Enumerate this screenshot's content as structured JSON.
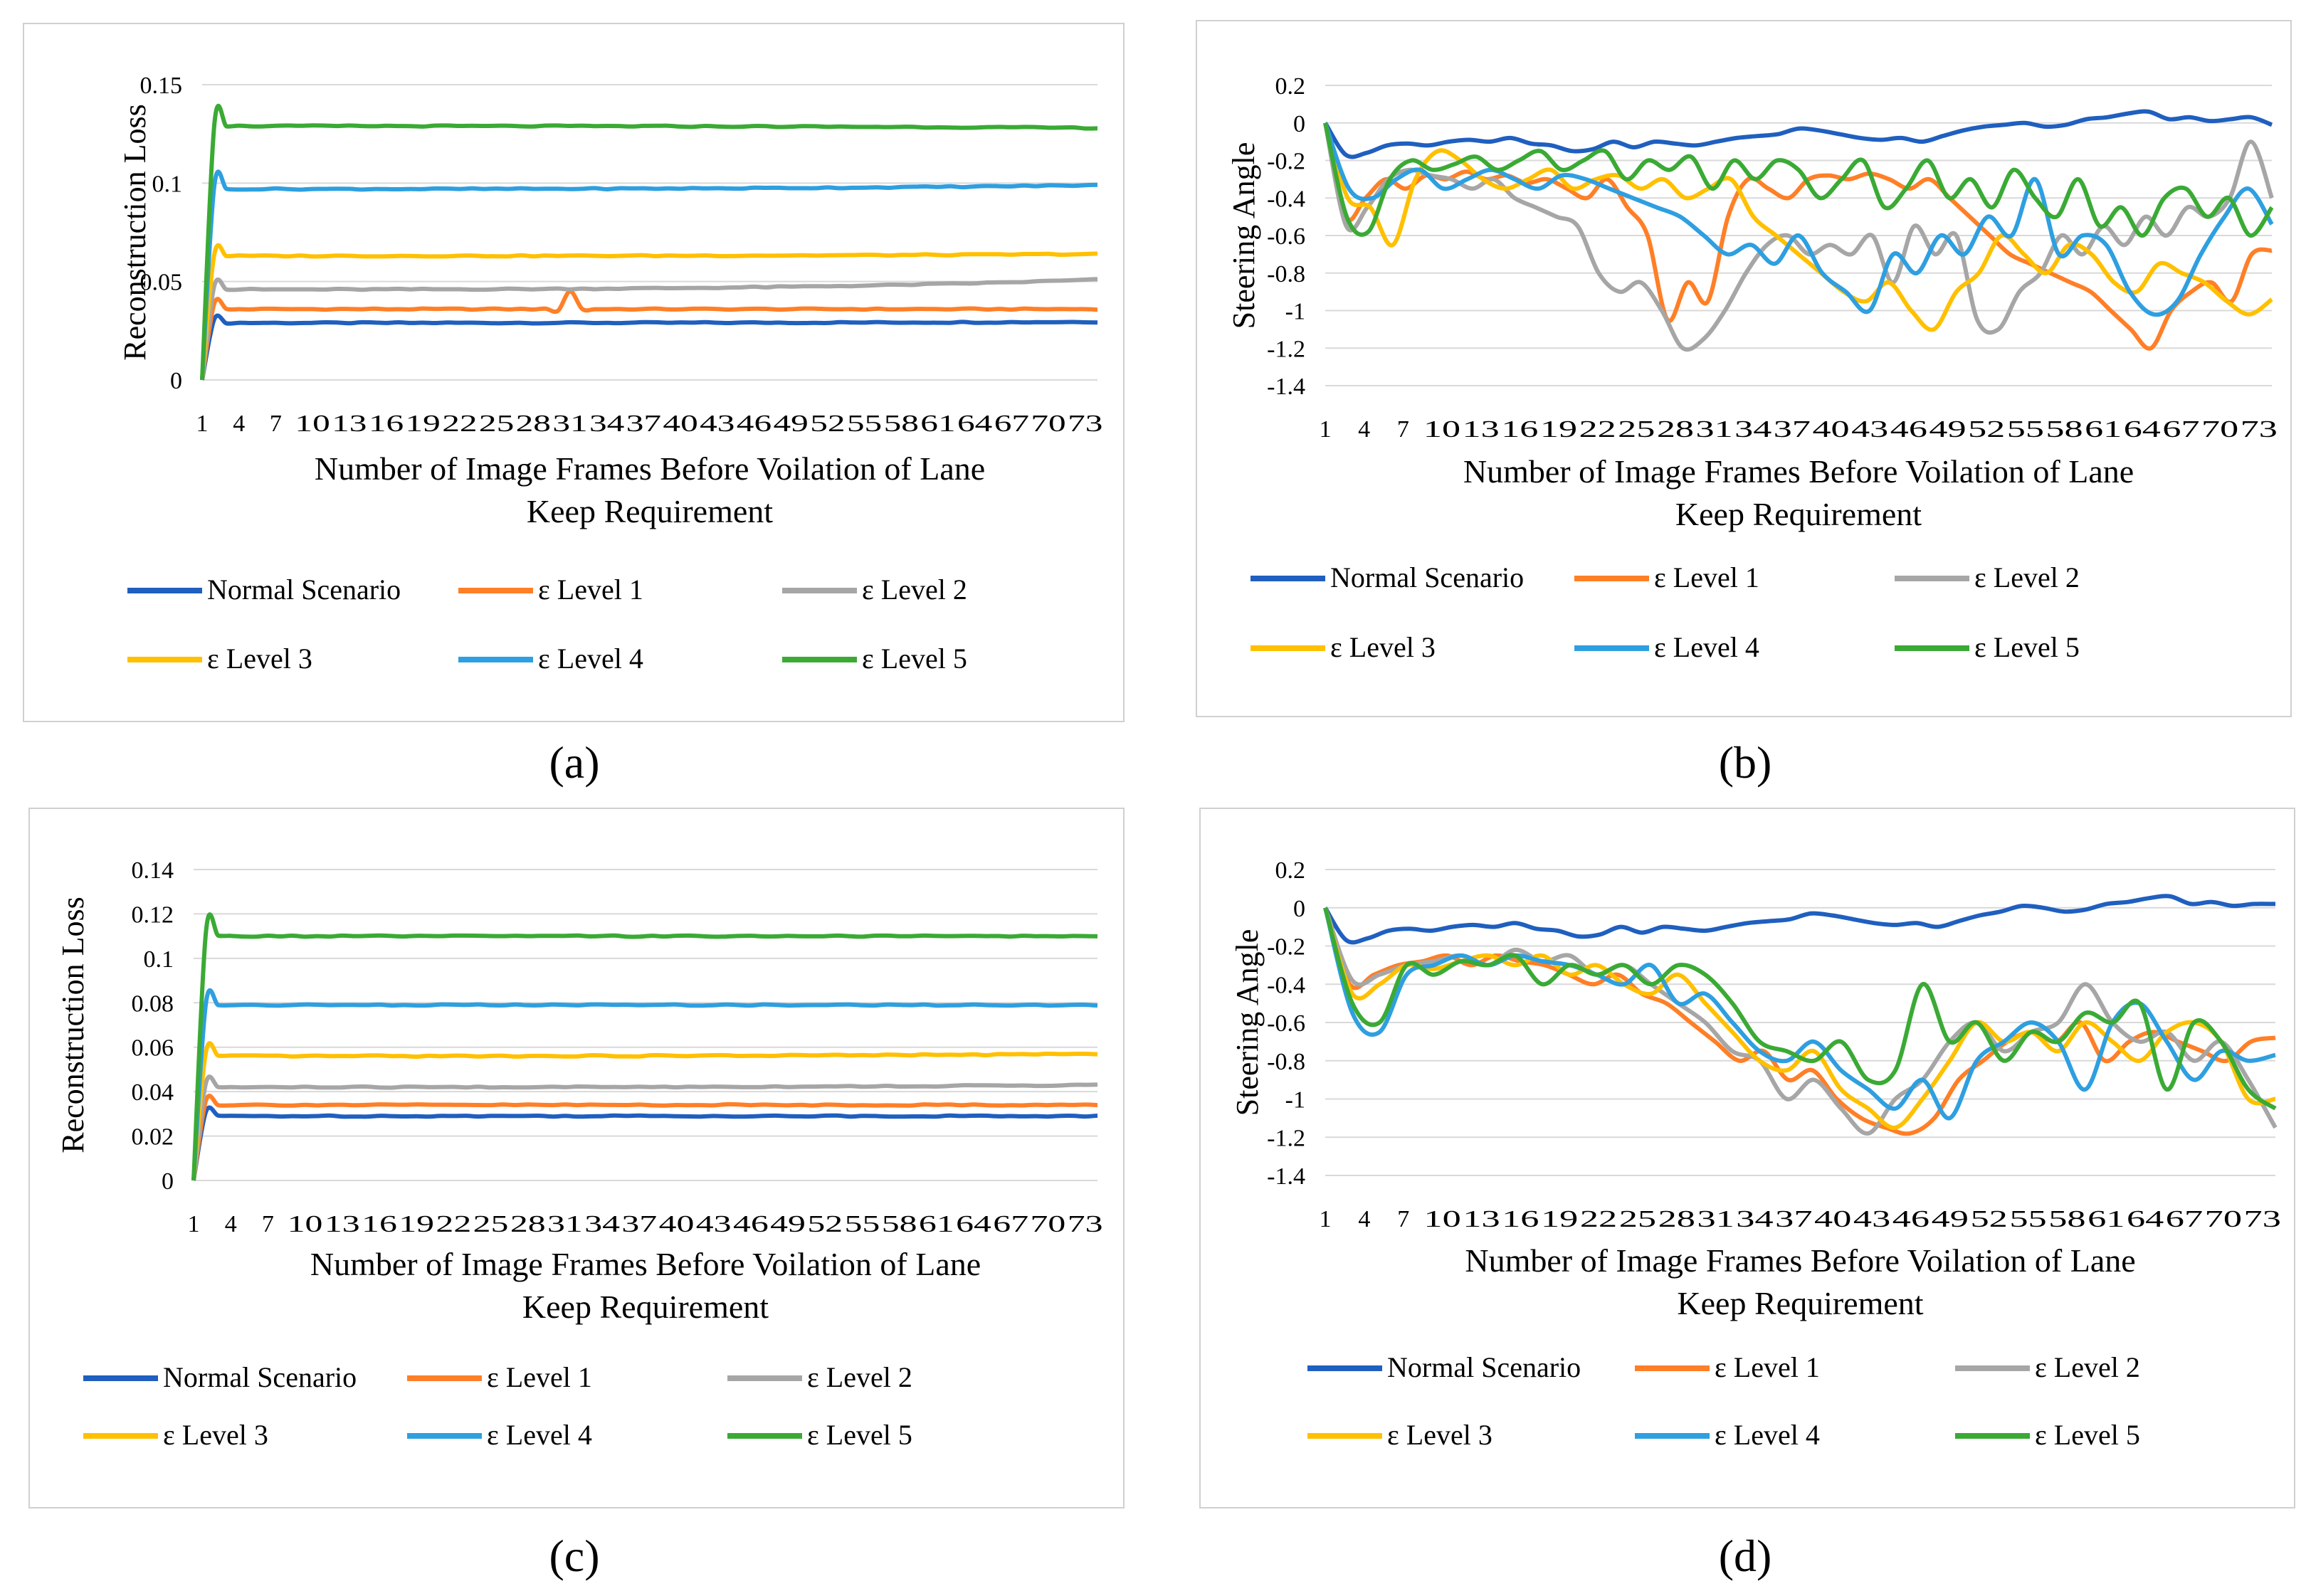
{
  "captions": [
    "(a)",
    "(b)",
    "(c)",
    "(d)"
  ],
  "series_colors": {
    "Normal Scenario": "#1f5fbf",
    "ε Level 1": "#ff7f27",
    "ε Level 2": "#a6a6a6",
    "ε Level 3": "#ffc000",
    "ε Level 4": "#2e9fe0",
    "ε Level 5": "#3aaa35"
  },
  "chart_data": [
    {
      "panel": "a",
      "type": "line",
      "title": "",
      "xlabel": "Number of Image Frames Before Voilation of Lane Keep Requirement",
      "ylabel": "Reconstruction Loss",
      "x_count": 74,
      "x_tick_labels": [
        "1",
        "4",
        "7",
        "10",
        "13",
        "16",
        "19",
        "22",
        "25",
        "28",
        "31",
        "34",
        "37",
        "40",
        "43",
        "46",
        "49",
        "52",
        "55",
        "58",
        "61",
        "64",
        "67",
        "70",
        "73"
      ],
      "y_ticks": [
        "0",
        "0.05",
        "0.1",
        "0.15"
      ],
      "ylim": [
        0,
        0.15
      ],
      "grid": "horizontal",
      "legend": "bottom",
      "series": [
        {
          "name": "Normal Scenario",
          "profile": "flat",
          "base": 0.029,
          "peak": 0.031,
          "end": 0.0295
        },
        {
          "name": "ε Level 1",
          "profile": "flat",
          "base": 0.036,
          "peak": 0.039,
          "end": 0.036,
          "bump_at": 30,
          "bump": 0.045
        },
        {
          "name": "ε Level 2",
          "profile": "flat",
          "base": 0.046,
          "peak": 0.048,
          "end": 0.051
        },
        {
          "name": "ε Level 3",
          "profile": "flat",
          "base": 0.063,
          "peak": 0.064,
          "end": 0.064
        },
        {
          "name": "ε Level 4",
          "profile": "flat",
          "base": 0.097,
          "peak": 0.099,
          "end": 0.099
        },
        {
          "name": "ε Level 5",
          "profile": "flat",
          "base": 0.129,
          "peak": 0.13,
          "end": 0.128
        }
      ]
    },
    {
      "panel": "b",
      "type": "line",
      "title": "",
      "xlabel": "Number of Image Frames Before Voilation of Lane Keep Requirement",
      "ylabel": "Steering Angle",
      "x_count": 74,
      "x_tick_labels": [
        "1",
        "4",
        "7",
        "10",
        "13",
        "16",
        "19",
        "22",
        "25",
        "28",
        "31",
        "34",
        "37",
        "40",
        "43",
        "46",
        "49",
        "52",
        "55",
        "58",
        "61",
        "64",
        "67",
        "70",
        "73"
      ],
      "y_ticks": [
        "0.2",
        "0",
        "-0.2",
        "-0.4",
        "-0.6",
        "-0.8",
        "-1",
        "-1.2",
        "-1.4"
      ],
      "ylim": [
        -1.4,
        0.2
      ],
      "grid": "horizontal",
      "legend": "bottom",
      "series": [
        {
          "name": "Normal Scenario",
          "values": [
            0,
            -0.17,
            -0.16,
            -0.12,
            -0.11,
            -0.12,
            -0.1,
            -0.09,
            -0.1,
            -0.08,
            -0.11,
            -0.12,
            -0.15,
            -0.14,
            -0.1,
            -0.13,
            -0.1,
            -0.11,
            -0.12,
            -0.1,
            -0.08,
            -0.07,
            -0.06,
            -0.03,
            -0.04,
            -0.06,
            -0.08,
            -0.09,
            -0.08,
            -0.1,
            -0.07,
            -0.04,
            -0.02,
            -0.01,
            0,
            -0.02,
            -0.01,
            0.02,
            0.03,
            0.05,
            0.06,
            0.02,
            0.03,
            0.01,
            0.02,
            0.03,
            -0.01
          ]
        },
        {
          "name": "ε Level 1",
          "values": [
            0,
            -0.5,
            -0.4,
            -0.3,
            -0.35,
            -0.28,
            -0.3,
            -0.26,
            -0.3,
            -0.28,
            -0.32,
            -0.3,
            -0.35,
            -0.4,
            -0.3,
            -0.45,
            -0.6,
            -1.05,
            -0.85,
            -0.95,
            -0.5,
            -0.3,
            -0.35,
            -0.4,
            -0.3,
            -0.28,
            -0.3,
            -0.27,
            -0.3,
            -0.35,
            -0.3,
            -0.4,
            -0.5,
            -0.6,
            -0.7,
            -0.75,
            -0.8,
            -0.85,
            -0.9,
            -1.0,
            -1.1,
            -1.2,
            -1.0,
            -0.9,
            -0.85,
            -0.95,
            -0.7,
            -0.68
          ]
        },
        {
          "name": "ε Level 2",
          "values": [
            0,
            -0.55,
            -0.45,
            -0.3,
            -0.25,
            -0.28,
            -0.3,
            -0.35,
            -0.3,
            -0.4,
            -0.45,
            -0.5,
            -0.55,
            -0.8,
            -0.9,
            -0.85,
            -1.0,
            -1.2,
            -1.15,
            -1.0,
            -0.8,
            -0.65,
            -0.6,
            -0.7,
            -0.65,
            -0.7,
            -0.6,
            -0.85,
            -0.55,
            -0.7,
            -0.6,
            -1.05,
            -1.1,
            -0.9,
            -0.8,
            -0.6,
            -0.7,
            -0.55,
            -0.65,
            -0.5,
            -0.6,
            -0.45,
            -0.5,
            -0.4,
            -0.1,
            -0.4
          ]
        },
        {
          "name": "ε Level 3",
          "values": [
            0,
            -0.4,
            -0.45,
            -0.65,
            -0.3,
            -0.15,
            -0.2,
            -0.3,
            -0.35,
            -0.3,
            -0.25,
            -0.35,
            -0.3,
            -0.28,
            -0.35,
            -0.3,
            -0.4,
            -0.35,
            -0.3,
            -0.5,
            -0.6,
            -0.7,
            -0.8,
            -0.9,
            -0.95,
            -0.85,
            -1.0,
            -1.1,
            -0.9,
            -0.8,
            -0.6,
            -0.7,
            -0.8,
            -0.65,
            -0.7,
            -0.85,
            -0.9,
            -0.75,
            -0.8,
            -0.85,
            -0.95,
            -1.02,
            -0.94
          ]
        },
        {
          "name": "ε Level 4",
          "values": [
            0,
            -0.35,
            -0.4,
            -0.3,
            -0.25,
            -0.35,
            -0.3,
            -0.25,
            -0.3,
            -0.35,
            -0.28,
            -0.3,
            -0.35,
            -0.4,
            -0.45,
            -0.5,
            -0.6,
            -0.7,
            -0.65,
            -0.75,
            -0.6,
            -0.8,
            -0.9,
            -1.0,
            -0.7,
            -0.8,
            -0.6,
            -0.7,
            -0.5,
            -0.6,
            -0.3,
            -0.7,
            -0.6,
            -0.65,
            -0.9,
            -1.02,
            -0.95,
            -0.7,
            -0.5,
            -0.35,
            -0.54
          ]
        },
        {
          "name": "ε Level 5",
          "values": [
            0,
            -0.5,
            -0.58,
            -0.3,
            -0.2,
            -0.25,
            -0.22,
            -0.18,
            -0.25,
            -0.2,
            -0.15,
            -0.25,
            -0.2,
            -0.15,
            -0.3,
            -0.2,
            -0.25,
            -0.18,
            -0.35,
            -0.2,
            -0.3,
            -0.2,
            -0.25,
            -0.4,
            -0.3,
            -0.2,
            -0.45,
            -0.35,
            -0.2,
            -0.4,
            -0.3,
            -0.45,
            -0.25,
            -0.4,
            -0.5,
            -0.3,
            -0.55,
            -0.45,
            -0.6,
            -0.4,
            -0.35,
            -0.5,
            -0.4,
            -0.6,
            -0.45
          ]
        }
      ]
    },
    {
      "panel": "c",
      "type": "line",
      "title": "",
      "xlabel": "Number of Image Frames Before Voilation of Lane Keep Requirement",
      "ylabel": "Reconstruction Loss",
      "x_count": 74,
      "x_tick_labels": [
        "1",
        "4",
        "7",
        "10",
        "13",
        "16",
        "19",
        "22",
        "25",
        "28",
        "31",
        "34",
        "37",
        "40",
        "43",
        "46",
        "49",
        "52",
        "55",
        "58",
        "61",
        "64",
        "67",
        "70",
        "73"
      ],
      "y_ticks": [
        "0",
        "0.02",
        "0.04",
        "0.06",
        "0.08",
        "0.1",
        "0.12",
        "0.14"
      ],
      "ylim": [
        0,
        0.14
      ],
      "grid": "horizontal",
      "legend": "bottom",
      "series": [
        {
          "name": "Normal Scenario",
          "profile": "flat",
          "base": 0.029,
          "peak": 0.031,
          "end": 0.029
        },
        {
          "name": "ε Level 1",
          "profile": "flat",
          "base": 0.034,
          "peak": 0.036,
          "end": 0.034
        },
        {
          "name": "ε Level 2",
          "profile": "flat",
          "base": 0.042,
          "peak": 0.044,
          "end": 0.043
        },
        {
          "name": "ε Level 3",
          "profile": "flat",
          "base": 0.056,
          "peak": 0.058,
          "end": 0.057
        },
        {
          "name": "ε Level 4",
          "profile": "flat",
          "base": 0.079,
          "peak": 0.08,
          "end": 0.079
        },
        {
          "name": "ε Level 5",
          "profile": "flat",
          "base": 0.11,
          "peak": 0.112,
          "end": 0.11
        }
      ]
    },
    {
      "panel": "d",
      "type": "line",
      "title": "",
      "xlabel": "Number of Image Frames Before Voilation of Lane Keep Requirement",
      "ylabel": "Steering Angle",
      "x_count": 74,
      "x_tick_labels": [
        "1",
        "4",
        "7",
        "10",
        "13",
        "16",
        "19",
        "22",
        "25",
        "28",
        "31",
        "34",
        "37",
        "40",
        "43",
        "46",
        "49",
        "52",
        "55",
        "58",
        "61",
        "64",
        "67",
        "70",
        "73"
      ],
      "y_ticks": [
        "0.2",
        "0",
        "-0.2",
        "-0.4",
        "-0.6",
        "-0.8",
        "-1",
        "-1.2",
        "-1.4"
      ],
      "ylim": [
        -1.4,
        0.2
      ],
      "grid": "horizontal",
      "legend": "bottom",
      "series": [
        {
          "name": "Normal Scenario",
          "values": [
            0,
            -0.17,
            -0.16,
            -0.12,
            -0.11,
            -0.12,
            -0.1,
            -0.09,
            -0.1,
            -0.08,
            -0.11,
            -0.12,
            -0.15,
            -0.14,
            -0.1,
            -0.13,
            -0.1,
            -0.11,
            -0.12,
            -0.1,
            -0.08,
            -0.07,
            -0.06,
            -0.03,
            -0.04,
            -0.06,
            -0.08,
            -0.09,
            -0.08,
            -0.1,
            -0.07,
            -0.04,
            -0.02,
            0.01,
            0,
            -0.02,
            -0.01,
            0.02,
            0.03,
            0.05,
            0.06,
            0.02,
            0.03,
            0.01,
            0.02,
            0.02
          ]
        },
        {
          "name": "ε Level 1",
          "values": [
            0,
            -0.4,
            -0.35,
            -0.3,
            -0.28,
            -0.25,
            -0.3,
            -0.25,
            -0.28,
            -0.3,
            -0.35,
            -0.4,
            -0.35,
            -0.45,
            -0.5,
            -0.6,
            -0.7,
            -0.8,
            -0.75,
            -0.9,
            -0.85,
            -1.0,
            -1.1,
            -1.15,
            -1.18,
            -1.1,
            -0.9,
            -0.8,
            -0.7,
            -0.65,
            -0.7,
            -0.6,
            -0.8,
            -0.7,
            -0.65,
            -0.7,
            -0.75,
            -0.8,
            -0.7,
            -0.68
          ]
        },
        {
          "name": "ε Level 2",
          "values": [
            0,
            -0.38,
            -0.35,
            -0.3,
            -0.28,
            -0.25,
            -0.3,
            -0.22,
            -0.28,
            -0.25,
            -0.35,
            -0.3,
            -0.4,
            -0.5,
            -0.6,
            -0.75,
            -0.8,
            -1.0,
            -0.9,
            -1.05,
            -1.18,
            -1.0,
            -0.9,
            -0.7,
            -0.6,
            -0.75,
            -0.65,
            -0.6,
            -0.4,
            -0.6,
            -0.7,
            -0.65,
            -0.8,
            -0.7,
            -0.9,
            -1.15
          ]
        },
        {
          "name": "ε Level 3",
          "values": [
            0,
            -0.45,
            -0.4,
            -0.3,
            -0.32,
            -0.28,
            -0.25,
            -0.3,
            -0.25,
            -0.35,
            -0.3,
            -0.4,
            -0.45,
            -0.35,
            -0.5,
            -0.65,
            -0.8,
            -0.85,
            -0.75,
            -0.95,
            -1.05,
            -1.15,
            -1.0,
            -0.8,
            -0.6,
            -0.7,
            -0.65,
            -0.75,
            -0.6,
            -0.7,
            -0.8,
            -0.65,
            -0.6,
            -0.7,
            -1.0,
            -1.0
          ]
        },
        {
          "name": "ε Level 4",
          "values": [
            0,
            -0.55,
            -0.65,
            -0.35,
            -0.3,
            -0.25,
            -0.3,
            -0.25,
            -0.28,
            -0.3,
            -0.35,
            -0.4,
            -0.3,
            -0.5,
            -0.45,
            -0.6,
            -0.75,
            -0.8,
            -0.7,
            -0.85,
            -0.95,
            -1.05,
            -0.9,
            -1.1,
            -0.8,
            -0.7,
            -0.6,
            -0.7,
            -0.95,
            -0.6,
            -0.5,
            -0.7,
            -0.9,
            -0.75,
            -0.8,
            -0.77
          ]
        },
        {
          "name": "ε Level 5",
          "values": [
            0,
            -0.5,
            -0.6,
            -0.3,
            -0.35,
            -0.28,
            -0.3,
            -0.25,
            -0.4,
            -0.3,
            -0.35,
            -0.3,
            -0.4,
            -0.3,
            -0.35,
            -0.5,
            -0.7,
            -0.75,
            -0.8,
            -0.7,
            -0.9,
            -0.85,
            -0.4,
            -0.7,
            -0.6,
            -0.8,
            -0.65,
            -0.7,
            -0.55,
            -0.6,
            -0.5,
            -0.95,
            -0.6,
            -0.7,
            -0.95,
            -1.05
          ]
        }
      ]
    }
  ],
  "legend_order": [
    "Normal Scenario",
    "ε Level 1",
    "ε Level 2",
    "ε Level 3",
    "ε Level 4",
    "ε Level 5"
  ]
}
